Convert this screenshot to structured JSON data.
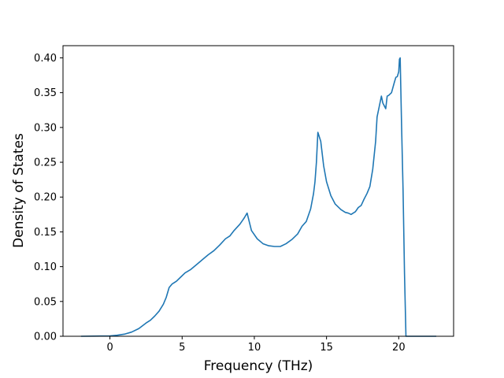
{
  "chart_data": {
    "type": "line",
    "xlabel": "Frequency (THz)",
    "ylabel": "Density of States",
    "xlim": [
      -3.25,
      23.8
    ],
    "ylim": [
      0.0,
      0.4175
    ],
    "xticks": [
      0,
      5,
      10,
      15,
      20
    ],
    "yticks": [
      0.0,
      0.05,
      0.1,
      0.15,
      0.2,
      0.25,
      0.3,
      0.35,
      0.4
    ],
    "xtick_labels": [
      "0",
      "5",
      "10",
      "15",
      "20"
    ],
    "ytick_labels": [
      "0.00",
      "0.05",
      "0.10",
      "0.15",
      "0.20",
      "0.25",
      "0.30",
      "0.35",
      "0.40"
    ],
    "grid": false,
    "line_color": "#1f77b4",
    "series": [
      {
        "x": [
          -2.0,
          0.0,
          0.5,
          1.0,
          1.5,
          2.0,
          2.5,
          2.8,
          3.1,
          3.4,
          3.7,
          3.9,
          4.1,
          4.3,
          4.6,
          4.9,
          5.2,
          5.6,
          6.0,
          6.4,
          6.8,
          7.2,
          7.6,
          8.0,
          8.3,
          8.6,
          9.0,
          9.2,
          9.3,
          9.5,
          9.8,
          10.2,
          10.6,
          11.0,
          11.4,
          11.8,
          12.2,
          12.6,
          13.0,
          13.3,
          13.6,
          13.9,
          14.1,
          14.2,
          14.3,
          14.4,
          14.6,
          14.8,
          15.0,
          15.3,
          15.6,
          16.0,
          16.3,
          16.5,
          16.7,
          17.0,
          17.2,
          17.4,
          17.6,
          17.8,
          18.0,
          18.2,
          18.4,
          18.5,
          18.6,
          18.8,
          18.9,
          19.1,
          19.2,
          19.3,
          19.5,
          19.7,
          19.8,
          19.9,
          20.0,
          20.05,
          20.1,
          20.2,
          20.3,
          20.4,
          20.5,
          20.6,
          21.0,
          22.6
        ],
        "y": [
          0.0,
          0.0005,
          0.0015,
          0.003,
          0.006,
          0.011,
          0.019,
          0.023,
          0.029,
          0.036,
          0.046,
          0.056,
          0.07,
          0.075,
          0.079,
          0.085,
          0.091,
          0.096,
          0.103,
          0.11,
          0.117,
          0.123,
          0.131,
          0.14,
          0.144,
          0.152,
          0.161,
          0.167,
          0.17,
          0.177,
          0.152,
          0.14,
          0.133,
          0.13,
          0.129,
          0.129,
          0.133,
          0.139,
          0.147,
          0.158,
          0.165,
          0.183,
          0.205,
          0.222,
          0.25,
          0.293,
          0.28,
          0.245,
          0.222,
          0.202,
          0.19,
          0.182,
          0.178,
          0.177,
          0.175,
          0.179,
          0.185,
          0.188,
          0.197,
          0.205,
          0.215,
          0.24,
          0.28,
          0.315,
          0.325,
          0.345,
          0.335,
          0.327,
          0.345,
          0.346,
          0.35,
          0.365,
          0.372,
          0.373,
          0.38,
          0.398,
          0.4,
          0.3,
          0.21,
          0.09,
          0.0,
          0.0,
          0.0,
          0.0
        ]
      }
    ]
  }
}
